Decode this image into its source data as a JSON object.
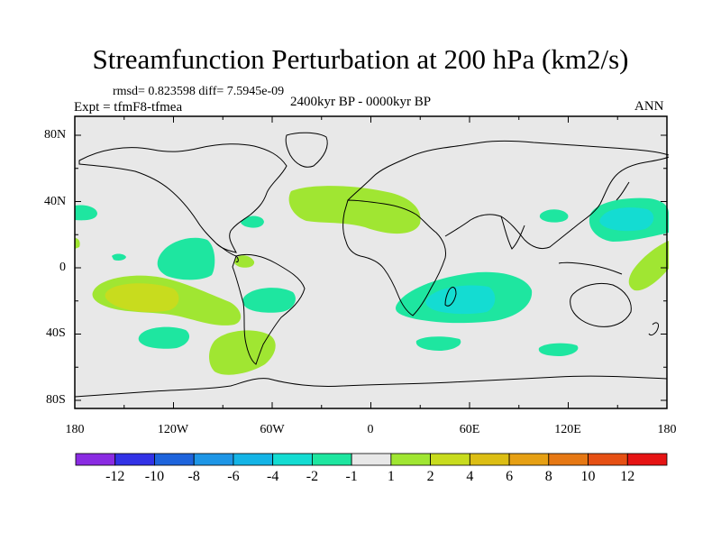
{
  "header": {
    "title": "Streamfunction Perturbation at 200 hPa (km2/s)",
    "stats": "rmsd= 0.823598 diff= 7.5945e-09",
    "experiment": "Expt = tfmF8-tfmea",
    "period": "2400kyr BP - 0000kyr BP",
    "season": "ANN"
  },
  "chart_data": {
    "type": "heatmap",
    "title": "Streamfunction Perturbation at 200 hPa (km2/s)",
    "xlabel": "",
    "ylabel": "",
    "xlim": [
      -180,
      180
    ],
    "ylim": [
      -90,
      90
    ],
    "x_ticks": [
      {
        "value": -180,
        "label": "180"
      },
      {
        "value": -120,
        "label": "120W"
      },
      {
        "value": -60,
        "label": "60W"
      },
      {
        "value": 0,
        "label": "0"
      },
      {
        "value": 60,
        "label": "60E"
      },
      {
        "value": 120,
        "label": "120E"
      },
      {
        "value": 180,
        "label": "180"
      }
    ],
    "y_ticks": [
      {
        "value": 80,
        "label": "80N"
      },
      {
        "value": 40,
        "label": "40N"
      },
      {
        "value": 0,
        "label": "0"
      },
      {
        "value": -40,
        "label": "40S"
      },
      {
        "value": -80,
        "label": "80S"
      }
    ],
    "colorbar": {
      "colors": [
        "#8a2be2",
        "#3232e6",
        "#1e64dc",
        "#1e96e6",
        "#14b4e6",
        "#14dcd2",
        "#1ee6a0",
        "#e8e8e8",
        "#a0e632",
        "#c8dc1e",
        "#dcbe14",
        "#e6a014",
        "#e67814",
        "#e65014",
        "#e61414"
      ],
      "labels": [
        "-12",
        "-10",
        "-8",
        "-6",
        "-4",
        "-2",
        "-1",
        "1",
        "2",
        "4",
        "6",
        "8",
        "10",
        "12"
      ]
    },
    "features": [
      {
        "name": "n-atlantic-north-africa-positive",
        "level": "1 to 2",
        "lon": -10,
        "lat": 33
      },
      {
        "name": "nw-pacific-negative",
        "level": "-2 to -4",
        "lon": 155,
        "lat": 33
      },
      {
        "name": "w-pacific-positive",
        "level": "1 to 2",
        "lon": 160,
        "lat": 5
      },
      {
        "name": "east-pacific-negative",
        "level": "-1 to -2",
        "lon": -115,
        "lat": 8
      },
      {
        "name": "se-pacific-positive",
        "level": "2 to 4",
        "lon": -135,
        "lat": -20
      },
      {
        "name": "s-indian-ocean-negative",
        "level": "-2 to -4",
        "lon": 60,
        "lat": -22
      },
      {
        "name": "s-america-negative",
        "level": "-1 to -2",
        "lon": -58,
        "lat": -20
      },
      {
        "name": "s-atlantic-positive",
        "level": "1 to 2",
        "lon": -60,
        "lat": -55
      }
    ]
  }
}
